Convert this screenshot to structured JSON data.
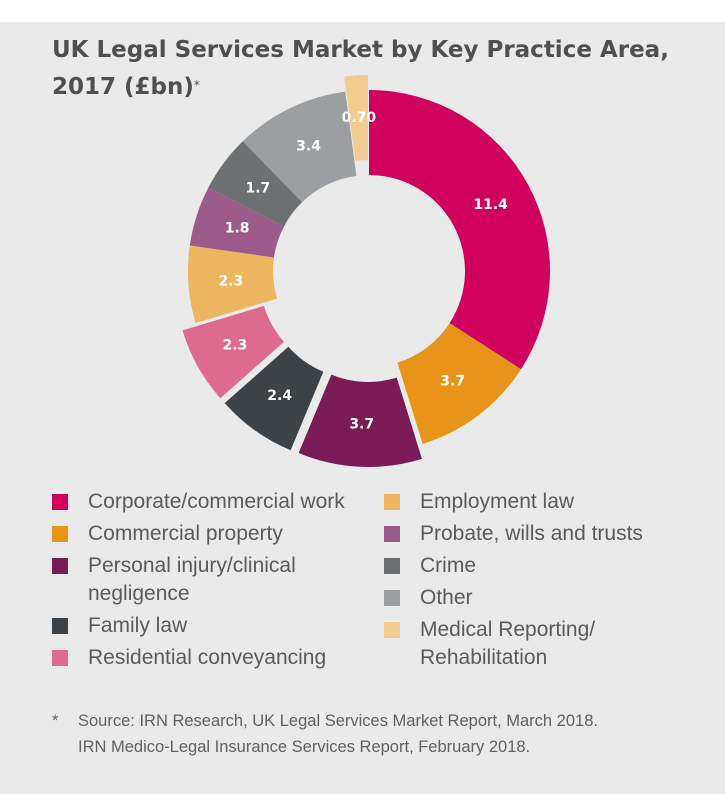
{
  "title": "UK Legal Services Market by Key Practice Area, 2017 (£bn)",
  "title_marker": "*",
  "chart_data": {
    "type": "pie",
    "variant": "donut",
    "unit": "£bn",
    "categories": [
      "Corporate/commercial work",
      "Commercial property",
      "Personal injury/clinical negligence",
      "Family law",
      "Residential conveyancing",
      "Employment law",
      "Probate, wills and trusts",
      "Crime",
      "Other",
      "Medical Reporting/ Rehabilitation"
    ],
    "values": [
      11.4,
      3.7,
      3.7,
      2.4,
      2.3,
      2.3,
      1.8,
      1.7,
      3.4,
      0.7
    ],
    "value_labels": [
      "11.4",
      "3.7",
      "3.7",
      "2.4",
      "2.3",
      "2.3",
      "1.8",
      "1.7",
      "3.4",
      "0.70"
    ],
    "colors": [
      "#d0005f",
      "#e8941a",
      "#7a1a56",
      "#3c4246",
      "#dd6b8f",
      "#ecb560",
      "#9c5a8a",
      "#6d7070",
      "#9c9fa1",
      "#f1cb90"
    ],
    "exploded": [
      false,
      false,
      true,
      true,
      true,
      false,
      false,
      false,
      false,
      true
    ],
    "legend_left": [
      0,
      1,
      2,
      3,
      4
    ],
    "legend_right": [
      5,
      6,
      7,
      8,
      9
    ]
  },
  "footnote": {
    "marker": "*",
    "line1": "Source: IRN Research, UK Legal Services Market Report, March  2018.",
    "line2": "IRN Medico-Legal Insurance Services Report, February 2018."
  }
}
